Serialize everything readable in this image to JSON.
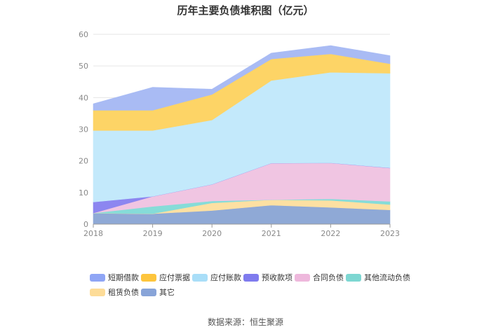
{
  "chart_data": {
    "type": "area",
    "stacked": true,
    "title": "历年主要负债堆积图（亿元）",
    "categories": [
      "2018",
      "2019",
      "2020",
      "2021",
      "2022",
      "2023"
    ],
    "ylim": [
      0,
      60
    ],
    "yticks": [
      0,
      10,
      20,
      30,
      40,
      50,
      60
    ],
    "grid": true,
    "legend_position": "bottom",
    "series": [
      {
        "name": "其它",
        "color": "#8fa9d6",
        "values": [
          3.5,
          3.3,
          4.3,
          6.0,
          5.3,
          4.5
        ]
      },
      {
        "name": "租赁负债",
        "color": "#fde0a2",
        "values": [
          0.0,
          0.0,
          2.4,
          1.7,
          2.2,
          1.7
        ]
      },
      {
        "name": "其他流动负债",
        "color": "#86dcd8",
        "values": [
          0.0,
          2.3,
          0.6,
          0.0,
          0.5,
          1.0
        ]
      },
      {
        "name": "合同负债",
        "color": "#f0c5e2",
        "values": [
          0.0,
          3.2,
          5.3,
          11.6,
          11.4,
          10.6
        ]
      },
      {
        "name": "预收款项",
        "color": "#8c86f0",
        "values": [
          3.5,
          0.0,
          0.0,
          0.0,
          0.0,
          0.0
        ]
      },
      {
        "name": "应付账款",
        "color": "#c3e9fb",
        "values": [
          22.6,
          20.8,
          20.3,
          26.1,
          28.6,
          29.9
        ]
      },
      {
        "name": "应付票据",
        "color": "#fdd466",
        "values": [
          6.4,
          6.4,
          8.1,
          6.8,
          5.8,
          3.0
        ]
      },
      {
        "name": "短期借款",
        "color": "#a9bbf4",
        "values": [
          2.0,
          7.2,
          1.6,
          1.8,
          2.6,
          2.5
        ]
      }
    ],
    "legend": [
      {
        "name": "短期借款",
        "color": "#8fa5f5"
      },
      {
        "name": "应付票据",
        "color": "#fdc53d"
      },
      {
        "name": "应付账款",
        "color": "#a9def8"
      },
      {
        "name": "预收款项",
        "color": "#7f7bee"
      },
      {
        "name": "合同负债",
        "color": "#eeb8dc"
      },
      {
        "name": "其他流动负债",
        "color": "#7dd7d2"
      },
      {
        "name": "租赁负债",
        "color": "#fddc98"
      },
      {
        "name": "其它",
        "color": "#88a4d8"
      }
    ]
  },
  "source": "数据来源：恒生聚源"
}
